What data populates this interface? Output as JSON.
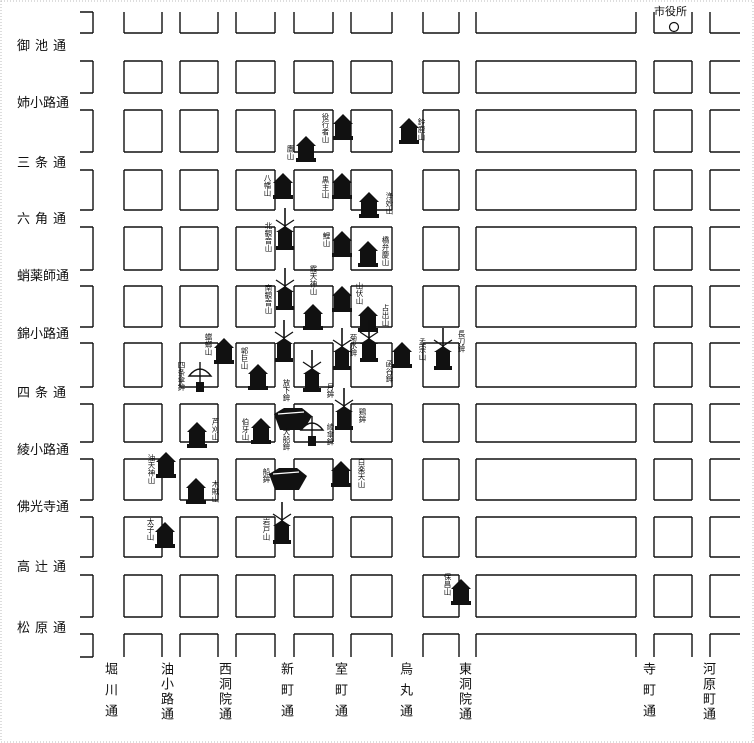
{
  "city_hall": {
    "label": "市役所"
  },
  "horizontal_streets": [
    {
      "name": "御池通"
    },
    {
      "name": "姉小路通"
    },
    {
      "name": "三条通"
    },
    {
      "name": "六角通"
    },
    {
      "name": "蛸薬師通"
    },
    {
      "name": "錦小路通"
    },
    {
      "name": "四条通"
    },
    {
      "name": "綾小路通"
    },
    {
      "name": "佛光寺通"
    },
    {
      "name": "高辻通"
    },
    {
      "name": "松原通"
    }
  ],
  "vertical_streets": [
    {
      "name": "堀川通"
    },
    {
      "name": "油小路通"
    },
    {
      "name": "西洞院通"
    },
    {
      "name": "新町通"
    },
    {
      "name": "室町通"
    },
    {
      "name": "烏丸通"
    },
    {
      "name": "東洞院通"
    },
    {
      "name": "寺町通"
    },
    {
      "name": "河原町通"
    }
  ],
  "floats": [
    {
      "name": "鈴鹿山",
      "kind": "yama"
    },
    {
      "name": "役行者山",
      "kind": "yama"
    },
    {
      "name": "鷹山",
      "kind": "yama"
    },
    {
      "name": "八幡山",
      "kind": "yama"
    },
    {
      "name": "黒主山",
      "kind": "yama"
    },
    {
      "name": "浄妙山",
      "kind": "yama"
    },
    {
      "name": "北観音山",
      "kind": "hoko"
    },
    {
      "name": "鯉山",
      "kind": "yama"
    },
    {
      "name": "橋弁慶山",
      "kind": "yama"
    },
    {
      "name": "南観音山",
      "kind": "hoko"
    },
    {
      "name": "霰天神山",
      "kind": "yama"
    },
    {
      "name": "山伏山",
      "kind": "yama"
    },
    {
      "name": "占出山",
      "kind": "yama"
    },
    {
      "name": "蟷螂山",
      "kind": "yama"
    },
    {
      "name": "四条傘鉾",
      "kind": "kasa"
    },
    {
      "name": "郭巨山",
      "kind": "yama"
    },
    {
      "name": "放下鉾",
      "kind": "hoko"
    },
    {
      "name": "月鉾",
      "kind": "hoko"
    },
    {
      "name": "菊水鉾",
      "kind": "hoko"
    },
    {
      "name": "函谷鉾",
      "kind": "hoko"
    },
    {
      "name": "孟宗山",
      "kind": "yama"
    },
    {
      "name": "長刀鉾",
      "kind": "hoko"
    },
    {
      "name": "芦刈山",
      "kind": "yama"
    },
    {
      "name": "伯牙山",
      "kind": "yama"
    },
    {
      "name": "大船鉾",
      "kind": "ship"
    },
    {
      "name": "鶏鉾",
      "kind": "hoko"
    },
    {
      "name": "綾傘鉾",
      "kind": "kasa"
    },
    {
      "name": "油天神山",
      "kind": "yama"
    },
    {
      "name": "船鉾",
      "kind": "ship"
    },
    {
      "name": "白楽天山",
      "kind": "yama"
    },
    {
      "name": "木賊山",
      "kind": "yama"
    },
    {
      "name": "太子山",
      "kind": "yama"
    },
    {
      "name": "岩戸山",
      "kind": "hoko"
    },
    {
      "name": "保昌山",
      "kind": "yama"
    }
  ]
}
